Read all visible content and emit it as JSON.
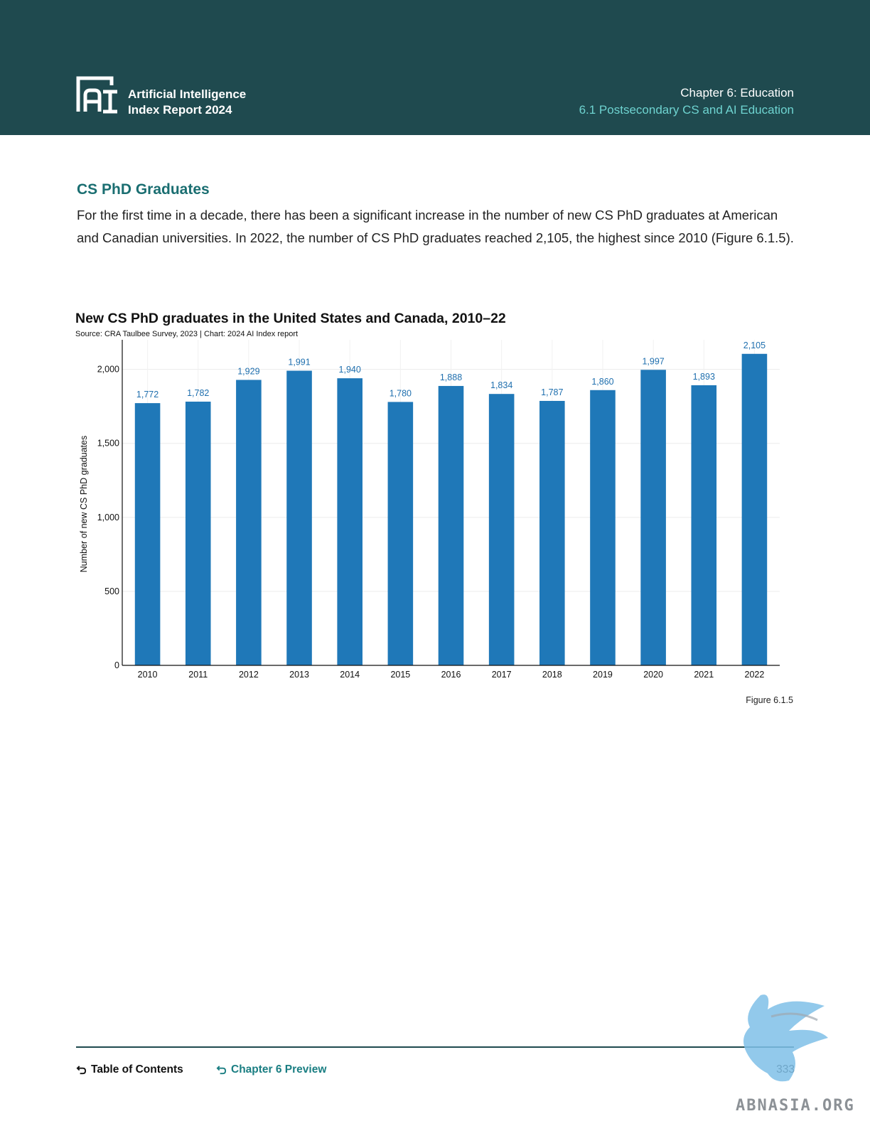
{
  "header": {
    "report_title_line1": "Artificial Intelligence",
    "report_title_line2": "Index Report 2024",
    "chapter_title": "Chapter 6: Education",
    "chapter_subtitle": "6.1 Postsecondary CS and AI Education"
  },
  "section": {
    "title": "CS PhD Graduates",
    "body": "For the first time in a decade, there has been a significant increase in the number of new CS PhD graduates at American and Canadian universities. In 2022, the number of CS PhD graduates reached 2,105, the highest since 2010 (Figure 6.1.5)."
  },
  "chart_data": {
    "type": "bar",
    "title": "New CS PhD graduates in the United States and Canada, 2010–22",
    "source": "Source: CRA Taulbee Survey, 2023 | Chart: 2024 AI Index report",
    "xlabel": "",
    "ylabel": "Number of new CS PhD graduates",
    "categories": [
      "2010",
      "2011",
      "2012",
      "2013",
      "2014",
      "2015",
      "2016",
      "2017",
      "2018",
      "2019",
      "2020",
      "2021",
      "2022"
    ],
    "values": [
      1772,
      1782,
      1929,
      1991,
      1940,
      1780,
      1888,
      1834,
      1787,
      1860,
      1997,
      1893,
      2105
    ],
    "data_labels": [
      "1,772",
      "1,782",
      "1,929",
      "1,991",
      "1,940",
      "1,780",
      "1,888",
      "1,834",
      "1,787",
      "1,860",
      "1,997",
      "1,893",
      "2,105"
    ],
    "yticks": [
      0,
      500,
      1000,
      1500,
      2000
    ],
    "ytick_labels": [
      "0",
      "500",
      "1,000",
      "1,500",
      "2,000"
    ],
    "ylim": [
      0,
      2200
    ],
    "grid": true,
    "legend": "none",
    "bar_color": "#1f78b8",
    "label_color": "#1f6fae",
    "figure_label": "Figure 6.1.5"
  },
  "footer": {
    "toc_label": "Table of Contents",
    "chapter_preview_label": "Chapter 6 Preview",
    "page_number": "333"
  },
  "colors": {
    "header_bg": "#1f4a4f",
    "accent_teal": "#1a6e71",
    "subtitle_teal": "#6ed3d0"
  }
}
